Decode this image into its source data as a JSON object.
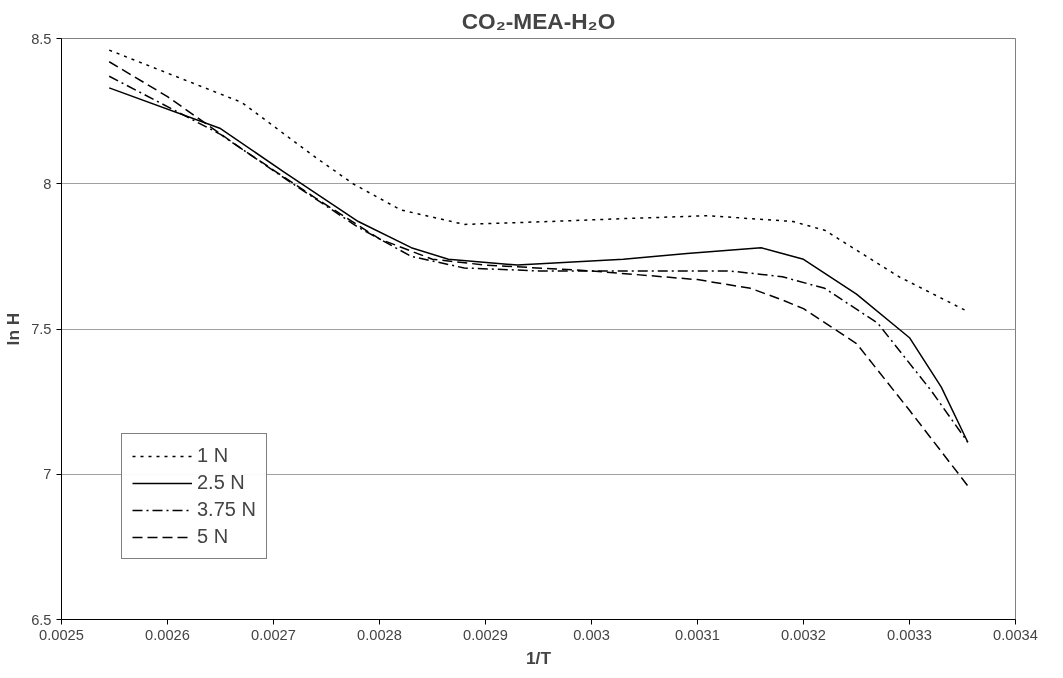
{
  "chart_data": {
    "type": "line",
    "title": "CO₂-MEA-H₂O",
    "xlabel": "1/T",
    "ylabel": "ln H",
    "xlim": [
      0.0025,
      0.0034
    ],
    "ylim": [
      6.5,
      8.5
    ],
    "xticks": [
      0.0025,
      0.0026,
      0.0027,
      0.0028,
      0.0029,
      0.003,
      0.0031,
      0.0032,
      0.0033,
      0.0034
    ],
    "yticks": [
      6.5,
      7,
      7.5,
      8,
      8.5
    ],
    "grid": "y",
    "legend": "bottom left",
    "marker": "none",
    "series": [
      {
        "name": "1 N",
        "color": "#000000",
        "line_style": "dotted",
        "x": [
          0.002545,
          0.00267,
          0.00274,
          0.002775,
          0.00282,
          0.00288,
          0.00296,
          0.00303,
          0.00311,
          0.00319,
          0.00322,
          0.00329,
          0.003355
        ],
        "values": [
          8.46,
          8.28,
          8.09,
          8.0,
          7.91,
          7.86,
          7.87,
          7.88,
          7.89,
          7.87,
          7.84,
          7.68,
          7.56
        ]
      },
      {
        "name": "2.5 N",
        "color": "#000000",
        "line_style": "solid",
        "x": [
          0.002545,
          0.00265,
          0.00271,
          0.00278,
          0.00283,
          0.002865,
          0.00293,
          0.00303,
          0.00309,
          0.00316,
          0.00318,
          0.0032,
          0.00325,
          0.0033,
          0.00333,
          0.003355
        ],
        "values": [
          8.33,
          8.19,
          8.04,
          7.87,
          7.78,
          7.74,
          7.72,
          7.74,
          7.76,
          7.78,
          7.76,
          7.74,
          7.62,
          7.47,
          7.3,
          7.11
        ]
      },
      {
        "name": "3.75 N",
        "color": "#000000",
        "line_style": "dashdot",
        "x": [
          0.002545,
          0.00265,
          0.00271,
          0.00278,
          0.00283,
          0.00288,
          0.00295,
          0.00305,
          0.00313,
          0.00318,
          0.00322,
          0.00327,
          0.00332,
          0.003355
        ],
        "values": [
          8.37,
          8.17,
          8.02,
          7.85,
          7.75,
          7.71,
          7.7,
          7.7,
          7.7,
          7.68,
          7.64,
          7.52,
          7.29,
          7.11
        ]
      },
      {
        "name": "5 N",
        "color": "#000000",
        "line_style": "dashed",
        "x": [
          0.002545,
          0.0026,
          0.00267,
          0.00274,
          0.0028,
          0.00285,
          0.0029,
          0.003,
          0.0031,
          0.00315,
          0.00318,
          0.0032,
          0.00325,
          0.0033,
          0.003355
        ],
        "values": [
          8.42,
          8.3,
          8.12,
          7.95,
          7.81,
          7.74,
          7.72,
          7.7,
          7.67,
          7.64,
          7.6,
          7.57,
          7.45,
          7.22,
          6.96
        ]
      }
    ]
  }
}
